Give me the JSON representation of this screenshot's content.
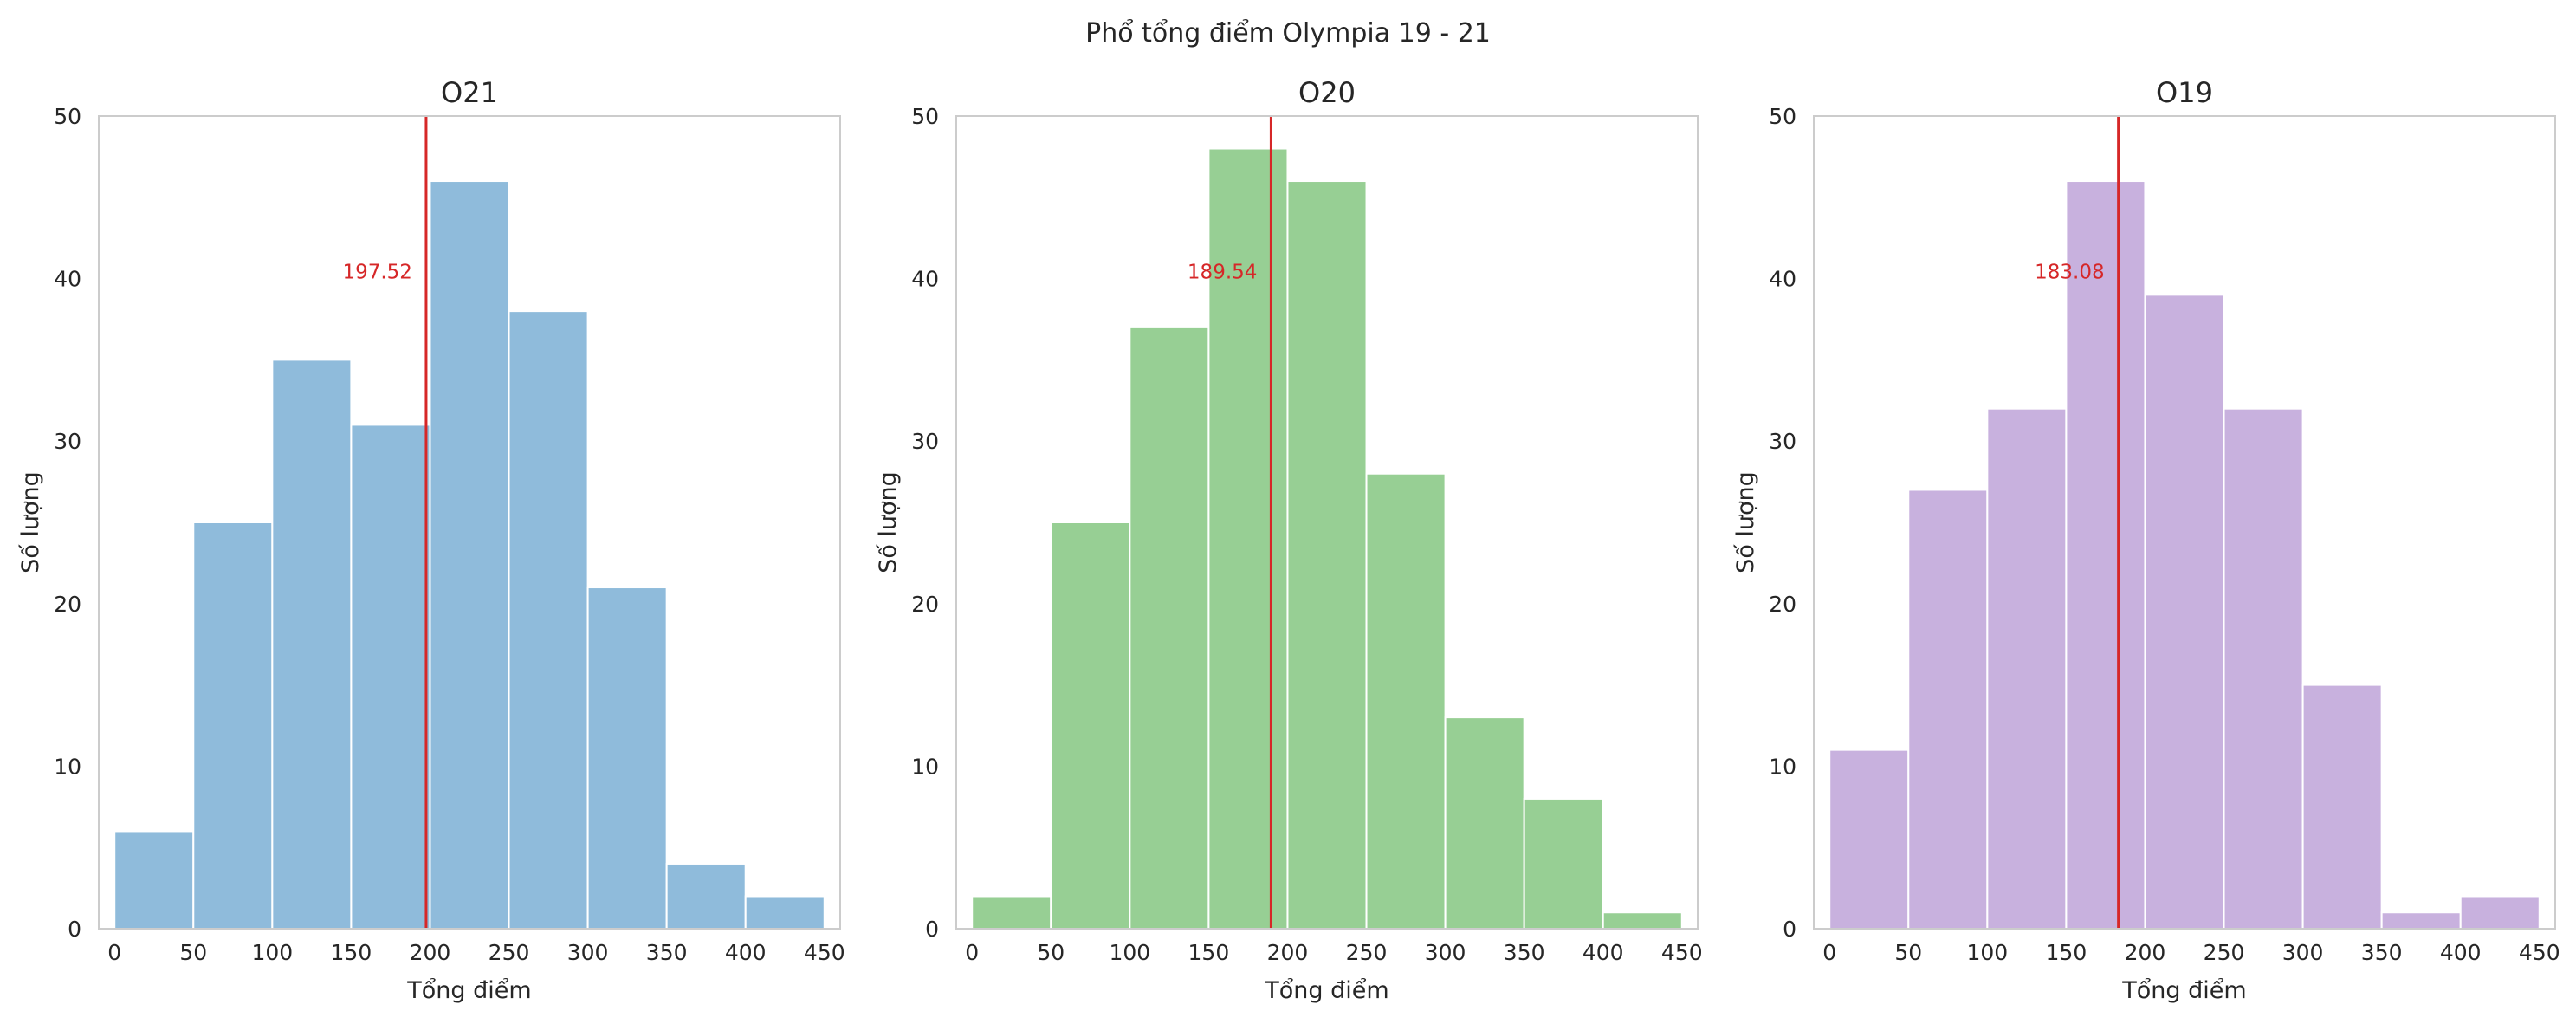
{
  "figure": {
    "title": "Phổ tổng điểm Olympia 19 - 21"
  },
  "chart_data": [
    {
      "type": "bar",
      "title": "O21",
      "xlabel": "Tổng điểm",
      "ylabel": "Số lượng",
      "bin_edges": [
        0,
        50,
        100,
        150,
        200,
        250,
        300,
        350,
        400,
        450
      ],
      "values": [
        6,
        25,
        35,
        31,
        46,
        38,
        21,
        4,
        2
      ],
      "xlim": [
        -10,
        460
      ],
      "ylim": [
        0,
        50
      ],
      "xticks": [
        "0",
        "50",
        "100",
        "150",
        "200",
        "250",
        "300",
        "350",
        "400",
        "450"
      ],
      "yticks": [
        "0",
        "10",
        "20",
        "30",
        "40",
        "50"
      ],
      "mean_line": {
        "value": 197.52,
        "label": "197.52"
      },
      "grid": false,
      "colors": {
        "bar": "#8fbbdb",
        "mean": "#d62728"
      }
    },
    {
      "type": "bar",
      "title": "O20",
      "xlabel": "Tổng điểm",
      "ylabel": "Số lượng",
      "bin_edges": [
        0,
        50,
        100,
        150,
        200,
        250,
        300,
        350,
        400,
        450
      ],
      "values": [
        2,
        25,
        37,
        48,
        46,
        28,
        13,
        8,
        1
      ],
      "xlim": [
        -10,
        460
      ],
      "ylim": [
        0,
        50
      ],
      "xticks": [
        "0",
        "50",
        "100",
        "150",
        "200",
        "250",
        "300",
        "350",
        "400",
        "450"
      ],
      "yticks": [
        "0",
        "10",
        "20",
        "30",
        "40",
        "50"
      ],
      "mean_line": {
        "value": 189.54,
        "label": "189.54"
      },
      "grid": false,
      "colors": {
        "bar": "#97cf94",
        "mean": "#d62728"
      }
    },
    {
      "type": "bar",
      "title": "O19",
      "xlabel": "Tổng điểm",
      "ylabel": "Số lượng",
      "bin_edges": [
        0,
        50,
        100,
        150,
        200,
        250,
        300,
        350,
        400,
        450
      ],
      "values": [
        11,
        27,
        32,
        46,
        39,
        32,
        15,
        1,
        2
      ],
      "xlim": [
        -10,
        460
      ],
      "ylim": [
        0,
        50
      ],
      "xticks": [
        "0",
        "50",
        "100",
        "150",
        "200",
        "250",
        "300",
        "350",
        "400",
        "450"
      ],
      "yticks": [
        "0",
        "10",
        "20",
        "30",
        "40",
        "50"
      ],
      "mean_line": {
        "value": 183.08,
        "label": "183.08"
      },
      "grid": false,
      "colors": {
        "bar": "#c8b1de",
        "mean": "#d62728"
      }
    }
  ]
}
